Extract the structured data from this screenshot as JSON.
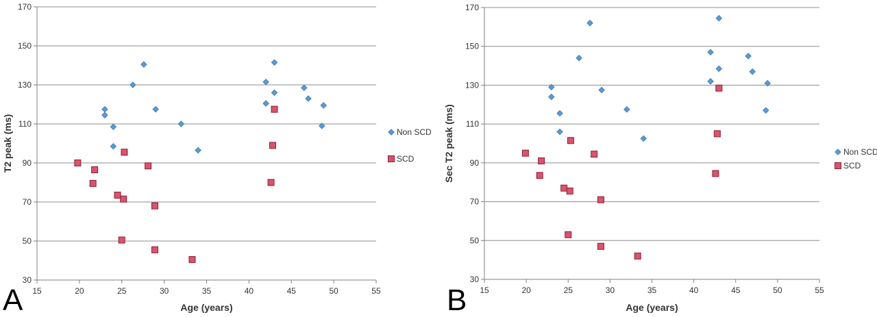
{
  "chart_data": [
    {
      "type": "scatter",
      "panel_label": "A",
      "xlabel": "Age (years)",
      "ylabel": "T2 peak (ms)",
      "xlim": [
        15,
        55
      ],
      "ylim": [
        30,
        170
      ],
      "xticks": [
        15,
        20,
        25,
        30,
        35,
        40,
        45,
        50,
        55
      ],
      "yticks": [
        30,
        50,
        70,
        90,
        110,
        130,
        150,
        170
      ],
      "grid": "horizontal",
      "legend_position": "right",
      "series": [
        {
          "name": "Non SCD",
          "marker": "diamond",
          "color": "#5b9bd5",
          "points": [
            [
              23.0,
              117.5
            ],
            [
              23.0,
              114.5
            ],
            [
              24.0,
              108.5
            ],
            [
              24.0,
              98.5
            ],
            [
              26.3,
              130.0
            ],
            [
              27.6,
              140.5
            ],
            [
              29.0,
              117.5
            ],
            [
              32.0,
              110.0
            ],
            [
              34.0,
              96.5
            ],
            [
              42.0,
              131.5
            ],
            [
              42.0,
              120.5
            ],
            [
              43.0,
              141.5
            ],
            [
              43.0,
              126.0
            ],
            [
              46.5,
              128.5
            ],
            [
              47.0,
              123.0
            ],
            [
              48.8,
              119.5
            ],
            [
              48.6,
              109.0
            ]
          ]
        },
        {
          "name": "SCD",
          "marker": "square",
          "color": "#d9546e",
          "points": [
            [
              19.8,
              90.0
            ],
            [
              21.6,
              79.5
            ],
            [
              21.8,
              86.5
            ],
            [
              24.5,
              73.5
            ],
            [
              25.2,
              71.5
            ],
            [
              25.3,
              95.5
            ],
            [
              25.0,
              50.5
            ],
            [
              28.1,
              88.5
            ],
            [
              28.9,
              68.0
            ],
            [
              28.9,
              45.5
            ],
            [
              33.3,
              40.5
            ],
            [
              42.6,
              80.0
            ],
            [
              42.8,
              99.0
            ],
            [
              43.0,
              117.5
            ]
          ]
        }
      ]
    },
    {
      "type": "scatter",
      "panel_label": "B",
      "xlabel": "Age (years)",
      "ylabel": "Sec T2 peak (ms)",
      "xlim": [
        15,
        55
      ],
      "ylim": [
        30,
        170
      ],
      "xticks": [
        15,
        20,
        25,
        30,
        35,
        40,
        45,
        50,
        55
      ],
      "yticks": [
        30,
        50,
        70,
        90,
        110,
        130,
        150,
        170
      ],
      "grid": "horizontal",
      "legend_position": "right",
      "series": [
        {
          "name": "Non SCD",
          "marker": "diamond",
          "color": "#5b9bd5",
          "points": [
            [
              23.0,
              129.0
            ],
            [
              23.0,
              124.0
            ],
            [
              24.0,
              115.5
            ],
            [
              24.0,
              106.0
            ],
            [
              26.3,
              144.0
            ],
            [
              27.6,
              162.0
            ],
            [
              29.0,
              127.5
            ],
            [
              32.0,
              117.5
            ],
            [
              34.0,
              102.5
            ],
            [
              42.0,
              147.0
            ],
            [
              42.0,
              132.0
            ],
            [
              43.0,
              164.5
            ],
            [
              43.0,
              138.5
            ],
            [
              46.5,
              145.0
            ],
            [
              47.0,
              137.0
            ],
            [
              48.8,
              131.0
            ],
            [
              48.6,
              117.0
            ]
          ]
        },
        {
          "name": "SCD",
          "marker": "square",
          "color": "#d9546e",
          "points": [
            [
              19.9,
              95.0
            ],
            [
              21.6,
              83.5
            ],
            [
              21.8,
              91.0
            ],
            [
              24.5,
              77.0
            ],
            [
              25.2,
              75.5
            ],
            [
              25.3,
              101.5
            ],
            [
              25.0,
              53.0
            ],
            [
              28.1,
              94.5
            ],
            [
              28.9,
              71.0
            ],
            [
              28.9,
              47.0
            ],
            [
              33.3,
              42.0
            ],
            [
              42.6,
              84.5
            ],
            [
              42.8,
              105.0
            ],
            [
              43.0,
              128.5
            ]
          ]
        }
      ]
    }
  ]
}
